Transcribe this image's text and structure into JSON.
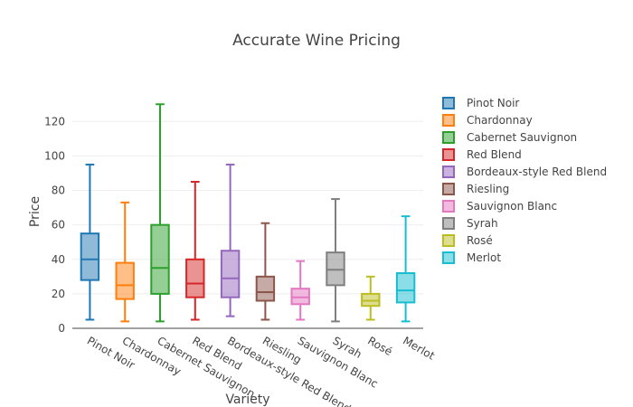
{
  "chart_data": {
    "type": "box",
    "title": "Accurate Wine Pricing",
    "xlabel": "Variety",
    "ylabel": "Price",
    "ylim": [
      0,
      138
    ],
    "yticks": [
      0,
      20,
      40,
      60,
      80,
      100,
      120
    ],
    "grid": true,
    "legend_position": "right",
    "series": [
      {
        "name": "Pinot Noir",
        "color": "#1f77b4",
        "min": 5,
        "q1": 28,
        "median": 40,
        "q3": 55,
        "max": 95
      },
      {
        "name": "Chardonnay",
        "color": "#ff7f0e",
        "min": 4,
        "q1": 17,
        "median": 25,
        "q3": 38,
        "max": 73
      },
      {
        "name": "Cabernet Sauvignon",
        "color": "#2ca02c",
        "min": 4,
        "q1": 20,
        "median": 35,
        "q3": 60,
        "max": 130
      },
      {
        "name": "Red Blend",
        "color": "#d62728",
        "min": 5,
        "q1": 18,
        "median": 26,
        "q3": 40,
        "max": 85
      },
      {
        "name": "Bordeaux-style Red Blend",
        "color": "#9467bd",
        "min": 7,
        "q1": 18,
        "median": 29,
        "q3": 45,
        "max": 95
      },
      {
        "name": "Riesling",
        "color": "#8c564b",
        "min": 5,
        "q1": 16,
        "median": 21,
        "q3": 30,
        "max": 61
      },
      {
        "name": "Sauvignon Blanc",
        "color": "#e377c2",
        "min": 5,
        "q1": 14,
        "median": 18,
        "q3": 23,
        "max": 39
      },
      {
        "name": "Syrah",
        "color": "#7f7f7f",
        "min": 4,
        "q1": 25,
        "median": 34,
        "q3": 44,
        "max": 75
      },
      {
        "name": "Rosé",
        "color": "#bcbd22",
        "min": 5,
        "q1": 13,
        "median": 16,
        "q3": 20,
        "max": 30
      },
      {
        "name": "Merlot",
        "color": "#17becf",
        "min": 4,
        "q1": 15,
        "median": 22,
        "q3": 32,
        "max": 65
      }
    ]
  }
}
